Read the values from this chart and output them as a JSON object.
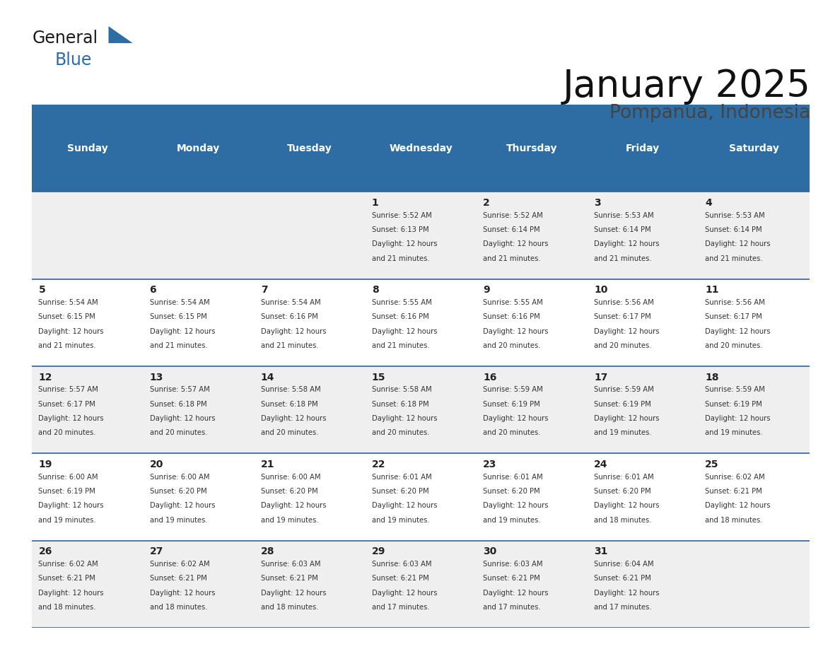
{
  "title": "January 2025",
  "subtitle": "Pompanua, Indonesia",
  "header_color": "#2E6DA4",
  "header_text_color": "#FFFFFF",
  "day_names": [
    "Sunday",
    "Monday",
    "Tuesday",
    "Wednesday",
    "Thursday",
    "Friday",
    "Saturday"
  ],
  "title_font_size": 38,
  "subtitle_font_size": 19,
  "background_color": "#FFFFFF",
  "alt_row_color": "#EFEFEF",
  "row_border_color": "#3060A0",
  "number_color": "#222222",
  "text_color": "#333333",
  "logo_general_color": "#1A1A1A",
  "logo_blue_color": "#2E6DA4",
  "weeks": [
    [
      null,
      null,
      null,
      {
        "day": 1,
        "sunrise": "5:52 AM",
        "sunset": "6:13 PM",
        "daylight": "12 hours and 21 minutes."
      },
      {
        "day": 2,
        "sunrise": "5:52 AM",
        "sunset": "6:14 PM",
        "daylight": "12 hours and 21 minutes."
      },
      {
        "day": 3,
        "sunrise": "5:53 AM",
        "sunset": "6:14 PM",
        "daylight": "12 hours and 21 minutes."
      },
      {
        "day": 4,
        "sunrise": "5:53 AM",
        "sunset": "6:14 PM",
        "daylight": "12 hours and 21 minutes."
      }
    ],
    [
      {
        "day": 5,
        "sunrise": "5:54 AM",
        "sunset": "6:15 PM",
        "daylight": "12 hours and 21 minutes."
      },
      {
        "day": 6,
        "sunrise": "5:54 AM",
        "sunset": "6:15 PM",
        "daylight": "12 hours and 21 minutes."
      },
      {
        "day": 7,
        "sunrise": "5:54 AM",
        "sunset": "6:16 PM",
        "daylight": "12 hours and 21 minutes."
      },
      {
        "day": 8,
        "sunrise": "5:55 AM",
        "sunset": "6:16 PM",
        "daylight": "12 hours and 21 minutes."
      },
      {
        "day": 9,
        "sunrise": "5:55 AM",
        "sunset": "6:16 PM",
        "daylight": "12 hours and 20 minutes."
      },
      {
        "day": 10,
        "sunrise": "5:56 AM",
        "sunset": "6:17 PM",
        "daylight": "12 hours and 20 minutes."
      },
      {
        "day": 11,
        "sunrise": "5:56 AM",
        "sunset": "6:17 PM",
        "daylight": "12 hours and 20 minutes."
      }
    ],
    [
      {
        "day": 12,
        "sunrise": "5:57 AM",
        "sunset": "6:17 PM",
        "daylight": "12 hours and 20 minutes."
      },
      {
        "day": 13,
        "sunrise": "5:57 AM",
        "sunset": "6:18 PM",
        "daylight": "12 hours and 20 minutes."
      },
      {
        "day": 14,
        "sunrise": "5:58 AM",
        "sunset": "6:18 PM",
        "daylight": "12 hours and 20 minutes."
      },
      {
        "day": 15,
        "sunrise": "5:58 AM",
        "sunset": "6:18 PM",
        "daylight": "12 hours and 20 minutes."
      },
      {
        "day": 16,
        "sunrise": "5:59 AM",
        "sunset": "6:19 PM",
        "daylight": "12 hours and 20 minutes."
      },
      {
        "day": 17,
        "sunrise": "5:59 AM",
        "sunset": "6:19 PM",
        "daylight": "12 hours and 19 minutes."
      },
      {
        "day": 18,
        "sunrise": "5:59 AM",
        "sunset": "6:19 PM",
        "daylight": "12 hours and 19 minutes."
      }
    ],
    [
      {
        "day": 19,
        "sunrise": "6:00 AM",
        "sunset": "6:19 PM",
        "daylight": "12 hours and 19 minutes."
      },
      {
        "day": 20,
        "sunrise": "6:00 AM",
        "sunset": "6:20 PM",
        "daylight": "12 hours and 19 minutes."
      },
      {
        "day": 21,
        "sunrise": "6:00 AM",
        "sunset": "6:20 PM",
        "daylight": "12 hours and 19 minutes."
      },
      {
        "day": 22,
        "sunrise": "6:01 AM",
        "sunset": "6:20 PM",
        "daylight": "12 hours and 19 minutes."
      },
      {
        "day": 23,
        "sunrise": "6:01 AM",
        "sunset": "6:20 PM",
        "daylight": "12 hours and 19 minutes."
      },
      {
        "day": 24,
        "sunrise": "6:01 AM",
        "sunset": "6:20 PM",
        "daylight": "12 hours and 18 minutes."
      },
      {
        "day": 25,
        "sunrise": "6:02 AM",
        "sunset": "6:21 PM",
        "daylight": "12 hours and 18 minutes."
      }
    ],
    [
      {
        "day": 26,
        "sunrise": "6:02 AM",
        "sunset": "6:21 PM",
        "daylight": "12 hours and 18 minutes."
      },
      {
        "day": 27,
        "sunrise": "6:02 AM",
        "sunset": "6:21 PM",
        "daylight": "12 hours and 18 minutes."
      },
      {
        "day": 28,
        "sunrise": "6:03 AM",
        "sunset": "6:21 PM",
        "daylight": "12 hours and 18 minutes."
      },
      {
        "day": 29,
        "sunrise": "6:03 AM",
        "sunset": "6:21 PM",
        "daylight": "12 hours and 17 minutes."
      },
      {
        "day": 30,
        "sunrise": "6:03 AM",
        "sunset": "6:21 PM",
        "daylight": "12 hours and 17 minutes."
      },
      {
        "day": 31,
        "sunrise": "6:04 AM",
        "sunset": "6:21 PM",
        "daylight": "12 hours and 17 minutes."
      },
      null
    ]
  ]
}
